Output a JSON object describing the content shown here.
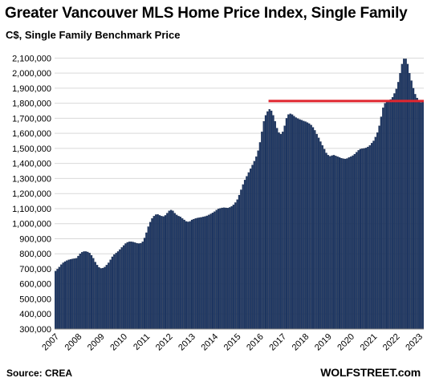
{
  "chart_data": {
    "type": "bar",
    "title": "Greater Vancouver MLS Home Price Index, Single Family",
    "subtitle": "C$, Single Family Benchmark Price",
    "source": "Source: CREA",
    "brand": "WOLFSTREET.com",
    "ylim": [
      300000,
      2150000
    ],
    "yticks": [
      300000,
      400000,
      500000,
      600000,
      700000,
      800000,
      900000,
      1000000,
      1100000,
      1200000,
      1300000,
      1400000,
      1500000,
      1600000,
      1700000,
      1800000,
      1900000,
      2000000,
      2100000
    ],
    "ytick_labels": [
      "300,000",
      "400,000",
      "500,000",
      "600,000",
      "700,000",
      "800,000",
      "900,000",
      "1,000,000",
      "1,100,000",
      "1,200,000",
      "1,300,000",
      "1,400,000",
      "1,500,000",
      "1,600,000",
      "1,700,000",
      "1,800,000",
      "1,900,000",
      "2,000,000",
      "2,100,000"
    ],
    "xtick_labels": [
      "2007",
      "2008",
      "2009",
      "2010",
      "2011",
      "2012",
      "2013",
      "2014",
      "2015",
      "2016",
      "2017",
      "2018",
      "2019",
      "2020",
      "2021",
      "2022",
      "2023"
    ],
    "bar_color": "#1f3864",
    "grid": true,
    "reference_line": {
      "value": 1815000,
      "from": "2016-06",
      "to": "2023-03",
      "color": "#e0262f"
    },
    "series": [
      {
        "start": "2007-01",
        "frequency": "monthly",
        "values": [
          685000,
          698000,
          712000,
          728000,
          740000,
          748000,
          755000,
          760000,
          763000,
          766000,
          768000,
          770000,
          785000,
          800000,
          810000,
          815000,
          815000,
          812000,
          805000,
          790000,
          770000,
          745000,
          725000,
          710000,
          703000,
          705000,
          712000,
          725000,
          740000,
          760000,
          780000,
          795000,
          805000,
          815000,
          828000,
          842000,
          855000,
          868000,
          876000,
          880000,
          880000,
          878000,
          874000,
          870000,
          868000,
          870000,
          880000,
          905000,
          940000,
          980000,
          1010000,
          1035000,
          1050000,
          1060000,
          1062000,
          1055000,
          1050000,
          1048000,
          1055000,
          1070000,
          1085000,
          1090000,
          1085000,
          1070000,
          1058000,
          1050000,
          1045000,
          1035000,
          1025000,
          1015000,
          1012000,
          1015000,
          1025000,
          1030000,
          1035000,
          1038000,
          1040000,
          1042000,
          1045000,
          1048000,
          1052000,
          1058000,
          1065000,
          1072000,
          1080000,
          1090000,
          1098000,
          1102000,
          1105000,
          1106000,
          1105000,
          1104000,
          1108000,
          1115000,
          1125000,
          1140000,
          1160000,
          1190000,
          1225000,
          1260000,
          1290000,
          1315000,
          1340000,
          1365000,
          1390000,
          1415000,
          1445000,
          1485000,
          1540000,
          1610000,
          1680000,
          1720000,
          1745000,
          1760000,
          1750000,
          1720000,
          1680000,
          1635000,
          1605000,
          1595000,
          1610000,
          1650000,
          1700000,
          1725000,
          1730000,
          1725000,
          1715000,
          1705000,
          1698000,
          1692000,
          1688000,
          1682000,
          1678000,
          1672000,
          1665000,
          1655000,
          1640000,
          1620000,
          1595000,
          1570000,
          1545000,
          1520000,
          1495000,
          1470000,
          1455000,
          1448000,
          1452000,
          1455000,
          1450000,
          1445000,
          1440000,
          1435000,
          1432000,
          1430000,
          1433000,
          1440000,
          1445000,
          1452000,
          1462000,
          1475000,
          1487000,
          1495000,
          1498000,
          1500000,
          1503000,
          1510000,
          1520000,
          1535000,
          1550000,
          1575000,
          1605000,
          1650000,
          1710000,
          1770000,
          1800000,
          1810000,
          1815000,
          1825000,
          1840000,
          1865000,
          1895000,
          1940000,
          2000000,
          2060000,
          2095000,
          2095000,
          2060000,
          2000000,
          1950000,
          1900000,
          1860000,
          1835000,
          1815000,
          1805000,
          1812000
        ]
      }
    ]
  }
}
